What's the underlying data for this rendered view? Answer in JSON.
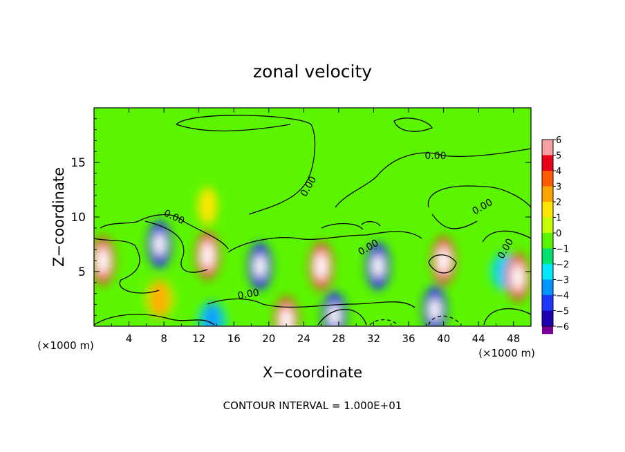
{
  "chart_data": {
    "type": "heatmap",
    "title": "zonal velocity",
    "xlabel": "X−coordinate",
    "ylabel": "Z−coordinate",
    "x_unit_left": "(×1000 m)",
    "x_unit_right": "(×1000 m)",
    "xlim": [
      0,
      50
    ],
    "ylim": [
      0,
      20
    ],
    "x_ticks": [
      4,
      8,
      12,
      16,
      20,
      24,
      28,
      32,
      36,
      40,
      44,
      48
    ],
    "y_ticks": [
      5,
      10,
      15
    ],
    "colorbar_levels": [
      6,
      5,
      4,
      3,
      2,
      1,
      0,
      -1,
      -2,
      -3,
      -4,
      -5,
      -6
    ],
    "colorbar_labels": [
      "6",
      "5",
      "4",
      "3",
      "2",
      "1",
      "0",
      "−1",
      "−2",
      "−3",
      "−4",
      "−5",
      "−6"
    ],
    "colorbar_colors": [
      "#f7a1a1",
      "#e8001a",
      "#ff5a00",
      "#ffa500",
      "#ffe600",
      "#c8ff00",
      "#5cf500",
      "#00e06e",
      "#00e8ff",
      "#0094ff",
      "#1e37ff",
      "#1e00b4",
      "#780096"
    ],
    "contour_interval_text": "CONTOUR INTERVAL = 1.000E+01",
    "contour_labels": [
      "0.00",
      "0.00",
      "0.00",
      "0.00",
      "0.00",
      "0.00",
      "0.00"
    ],
    "features": [
      {
        "x": 1,
        "z": 6,
        "value": 6
      },
      {
        "x": 7.5,
        "z": 7.5,
        "value": -5
      },
      {
        "x": 7.5,
        "z": 2.5,
        "value": 4
      },
      {
        "x": 13,
        "z": 6.5,
        "value": 6
      },
      {
        "x": 19,
        "z": 5.5,
        "value": -6
      },
      {
        "x": 26,
        "z": 5.5,
        "value": 6
      },
      {
        "x": 32.5,
        "z": 5.5,
        "value": -5
      },
      {
        "x": 40,
        "z": 6,
        "value": 6
      },
      {
        "x": 47,
        "z": 5,
        "value": -3
      },
      {
        "x": 48.5,
        "z": 4.5,
        "value": 5
      },
      {
        "x": 39,
        "z": 1.5,
        "value": -6
      },
      {
        "x": 27.5,
        "z": 1,
        "value": -6
      },
      {
        "x": 22,
        "z": 0.5,
        "value": 6
      },
      {
        "x": 13.5,
        "z": 0.5,
        "value": -4
      },
      {
        "x": 13,
        "z": 11,
        "value": 2
      }
    ]
  }
}
